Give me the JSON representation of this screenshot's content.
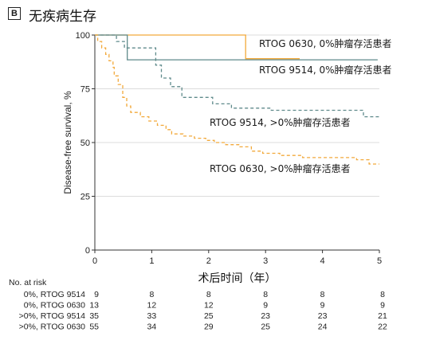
{
  "panel": {
    "label": "B",
    "title": "无疾病生存"
  },
  "chart_data": {
    "type": "line",
    "title": "",
    "xlabel": "术后时间（年）",
    "ylabel": "Disease-free survival, %",
    "xlim": [
      0,
      5
    ],
    "ylim": [
      0,
      100
    ],
    "xticks": [
      0,
      1,
      2,
      3,
      4,
      5
    ],
    "yticks": [
      0,
      25,
      50,
      75,
      100
    ],
    "grid": "horizontal",
    "series": [
      {
        "name": "RTOG 0630, 0%肿瘤存活患者",
        "color": "#f2a93b",
        "dashed": false,
        "x": [
          0,
          2.65,
          2.65,
          3.6
        ],
        "y": [
          100,
          100,
          89,
          89
        ]
      },
      {
        "name": "RTOG 9514, 0%肿瘤存活患者",
        "color": "#5f8a8b",
        "dashed": false,
        "x": [
          0,
          0.57,
          0.57,
          4.97
        ],
        "y": [
          100,
          100,
          88.5,
          88.5
        ]
      },
      {
        "name": "RTOG 9514, >0%肿瘤存活患者",
        "color": "#5f8a8b",
        "dashed": true,
        "x": [
          0,
          0.38,
          0.38,
          0.52,
          0.52,
          1.07,
          1.07,
          1.17,
          1.17,
          1.33,
          1.33,
          1.53,
          1.53,
          2.07,
          2.07,
          2.4,
          2.4,
          3.1,
          3.1,
          4.72,
          4.72,
          5.0
        ],
        "y": [
          100,
          100,
          97,
          97,
          94,
          94,
          86,
          86,
          80,
          80,
          76,
          76,
          71,
          71,
          68,
          68,
          66,
          66,
          65,
          65,
          62,
          62
        ]
      },
      {
        "name": "RTOG 0630, >0%肿瘤存活患者",
        "color": "#f2a93b",
        "dashed": true,
        "x": [
          0,
          0.05,
          0.05,
          0.12,
          0.12,
          0.19,
          0.19,
          0.25,
          0.25,
          0.32,
          0.32,
          0.34,
          0.34,
          0.41,
          0.41,
          0.49,
          0.49,
          0.56,
          0.56,
          0.63,
          0.63,
          0.8,
          0.8,
          0.95,
          0.95,
          1.1,
          1.1,
          1.25,
          1.25,
          1.35,
          1.35,
          1.55,
          1.55,
          1.75,
          1.75,
          1.95,
          1.95,
          2.1,
          2.1,
          2.3,
          2.3,
          2.55,
          2.55,
          2.75,
          2.75,
          2.95,
          2.95,
          3.25,
          3.25,
          3.65,
          3.65,
          4.25,
          4.25,
          4.6,
          4.6,
          4.82,
          4.82,
          5.0
        ],
        "y": [
          100,
          100,
          97,
          97,
          94,
          94,
          91,
          91,
          88,
          88,
          85,
          85,
          81,
          81,
          77,
          77,
          71,
          71,
          67,
          67,
          64,
          64,
          62,
          62,
          60,
          60,
          58,
          58,
          56,
          56,
          54,
          54,
          53,
          53,
          52,
          52,
          51,
          51,
          50,
          50,
          49,
          49,
          48,
          48,
          46,
          46,
          45,
          45,
          44,
          44,
          43,
          43,
          43,
          43,
          42,
          42,
          40,
          40
        ]
      }
    ],
    "annotations": [
      {
        "text": "RTOG 0630, 0%肿瘤存活患者"
      },
      {
        "text": "RTOG 9514, 0%肿瘤存活患者"
      },
      {
        "text": "RTOG 9514, >0%肿瘤存活患者"
      },
      {
        "text": "RTOG 0630, >0%肿瘤存活患者"
      }
    ]
  },
  "risk_table": {
    "header": "No. at risk",
    "rows": [
      {
        "label": "0%, RTOG 9514",
        "values": [
          9,
          8,
          8,
          8,
          8,
          8
        ]
      },
      {
        "label": "0%, RTOG 0630",
        "values": [
          13,
          12,
          12,
          9,
          9,
          9
        ]
      },
      {
        "label": ">0%, RTOG 9514",
        "values": [
          35,
          33,
          25,
          23,
          23,
          21
        ]
      },
      {
        "label": ">0%, RTOG 0630",
        "values": [
          55,
          34,
          29,
          25,
          24,
          22
        ]
      }
    ]
  }
}
